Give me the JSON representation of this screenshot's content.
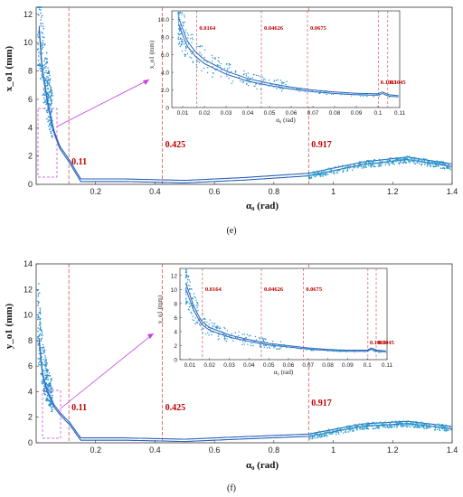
{
  "chart_data": [
    {
      "type": "line",
      "panel_label": "(e)",
      "xlabel": "α₀ (rad)",
      "ylabel": "x_o1 (mm)",
      "xlim": [
        0,
        1.4
      ],
      "ylim": [
        0,
        12.5
      ],
      "x_ticks": [
        "0.2",
        "0.4",
        "0.6",
        "0.8",
        "1",
        "1.2",
        "1.4"
      ],
      "y_ticks": [
        "0",
        "2",
        "4",
        "6",
        "8",
        "10",
        "12"
      ],
      "vlines": [
        {
          "x": 0.11,
          "label": "0.11"
        },
        {
          "x": 0.425,
          "label": "0.425"
        },
        {
          "x": 0.917,
          "label": "0.917"
        }
      ],
      "series": [
        {
          "values_x": [
            0.01,
            0.02,
            0.03,
            0.04,
            0.06,
            0.08,
            0.1,
            0.11,
            0.15,
            0.3,
            0.5,
            0.7,
            0.917,
            1.1,
            1.25,
            1.4
          ],
          "values_y": [
            11.0,
            8.0,
            6.8,
            5.5,
            3.6,
            2.5,
            1.9,
            1.6,
            0.2,
            0.2,
            0.1,
            0.3,
            0.6,
            1.4,
            1.75,
            1.25
          ]
        }
      ],
      "inset": {
        "xlabel": "α₀ (rad)",
        "ylabel": "x_o1 (mm)",
        "xlim": [
          0.005,
          0.11
        ],
        "ylim": [
          0,
          11
        ],
        "x_ticks": [
          "0.01",
          "0.02",
          "0.03",
          "0.04",
          "0.05",
          "0.06",
          "0.07",
          "0.08",
          "0.09",
          "0.1",
          "0.11"
        ],
        "y_ticks": [
          "0",
          "2.0",
          "4.0",
          "6.0",
          "8.0",
          "10.0"
        ],
        "vlines": [
          {
            "x": 0.0164,
            "label": "0.0164"
          },
          {
            "x": 0.04626,
            "label": "0.04626"
          },
          {
            "x": 0.0675,
            "label": "0.0675"
          },
          {
            "x": 0.1003,
            "label": "0.1003"
          },
          {
            "x": 0.1045,
            "label": "0.1045"
          }
        ],
        "series": [
          {
            "values_x": [
              0.008,
              0.012,
              0.016,
              0.02,
              0.03,
              0.04,
              0.05,
              0.06,
              0.07,
              0.08,
              0.09,
              0.1,
              0.102,
              0.105,
              0.11
            ],
            "values_y": [
              9.5,
              7.0,
              5.8,
              5.0,
              3.8,
              3.0,
              2.5,
              2.1,
              1.8,
              1.6,
              1.45,
              1.4,
              1.6,
              1.3,
              1.2
            ]
          }
        ]
      }
    },
    {
      "type": "line",
      "panel_label": "(f)",
      "xlabel": "α₀ (rad)",
      "ylabel": "y_o1 (mm)",
      "xlim": [
        0,
        1.4
      ],
      "ylim": [
        0,
        14
      ],
      "x_ticks": [
        "0.2",
        "0.4",
        "0.6",
        "0.8",
        "1",
        "1.2",
        "1.4"
      ],
      "y_ticks": [
        "0",
        "2",
        "4",
        "6",
        "8",
        "10",
        "12",
        "14"
      ],
      "vlines": [
        {
          "x": 0.11,
          "label": "0.11"
        },
        {
          "x": 0.425,
          "label": "0.425"
        },
        {
          "x": 0.917,
          "label": "0.917"
        }
      ],
      "series": [
        {
          "values_x": [
            0.01,
            0.02,
            0.03,
            0.04,
            0.06,
            0.08,
            0.1,
            0.11,
            0.15,
            0.3,
            0.5,
            0.7,
            0.917,
            1.1,
            1.25,
            1.4
          ],
          "values_y": [
            8.0,
            5.5,
            4.5,
            3.8,
            2.8,
            2.2,
            1.7,
            1.5,
            0.2,
            0.2,
            0.1,
            0.3,
            0.5,
            1.3,
            1.5,
            1.1
          ]
        }
      ],
      "inset": {
        "xlabel": "α₀ (rad)",
        "ylabel": "y_o1 (mm)",
        "xlim": [
          0.005,
          0.11
        ],
        "ylim": [
          0,
          13
        ],
        "x_ticks": [
          "0.01",
          "0.02",
          "0.03",
          "0.04",
          "0.05",
          "0.06",
          "0.07",
          "0.08",
          "0.09",
          "0.1",
          "0.11"
        ],
        "y_ticks": [
          "0",
          "2",
          "4",
          "6",
          "8",
          "10",
          "12"
        ],
        "vlines": [
          {
            "x": 0.0164,
            "label": "0.0164"
          },
          {
            "x": 0.04626,
            "label": "0.04626"
          },
          {
            "x": 0.0675,
            "label": "0.0675"
          },
          {
            "x": 0.1003,
            "label": "0.1003"
          },
          {
            "x": 0.1045,
            "label": "0.1045"
          }
        ],
        "series": [
          {
            "values_x": [
              0.008,
              0.012,
              0.016,
              0.02,
              0.03,
              0.04,
              0.05,
              0.06,
              0.07,
              0.08,
              0.09,
              0.1,
              0.102,
              0.105,
              0.11
            ],
            "values_y": [
              10.0,
              7.0,
              5.0,
              4.2,
              3.2,
              2.6,
              2.1,
              1.8,
              1.5,
              1.3,
              1.2,
              1.2,
              1.5,
              1.2,
              1.1
            ]
          }
        ]
      }
    }
  ]
}
